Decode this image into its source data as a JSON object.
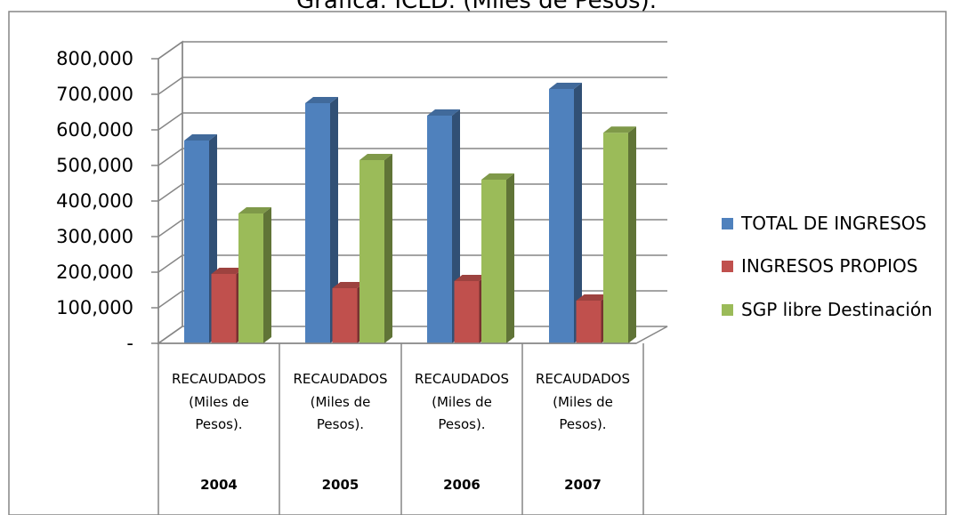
{
  "title": "Gráfica: ICLD. (Miles  de Pesos).",
  "chart_data": {
    "type": "bar",
    "title": "Gráfica: ICLD. (Miles  de Pesos).",
    "categories": [
      [
        "RECAUDADOS",
        "(Miles de",
        "Pesos).",
        "2004"
      ],
      [
        "RECAUDADOS",
        "(Miles de",
        "Pesos).",
        "2005"
      ],
      [
        "RECAUDADOS",
        "(Miles de",
        "Pesos).",
        "2006"
      ],
      [
        "RECAUDADOS",
        "(Miles de",
        "Pesos).",
        "2007"
      ]
    ],
    "series": [
      {
        "name": "TOTAL DE INGRESOS",
        "color": "#4f81bd",
        "values": [
          570000,
          675000,
          640000,
          715000
        ]
      },
      {
        "name": "INGRESOS PROPIOS",
        "color": "#c0504d",
        "values": [
          195000,
          155000,
          175000,
          120000
        ]
      },
      {
        "name": "SGP libre Destinación",
        "color": "#9bbb59",
        "values": [
          365000,
          515000,
          460000,
          592000
        ]
      }
    ],
    "ylim": [
      0,
      800000
    ],
    "yticks": [
      "-",
      "100,000",
      "200,000",
      "300,000",
      "400,000",
      "500,000",
      "600,000",
      "700,000",
      "800,000"
    ],
    "grid": true,
    "legend_position": "right"
  }
}
